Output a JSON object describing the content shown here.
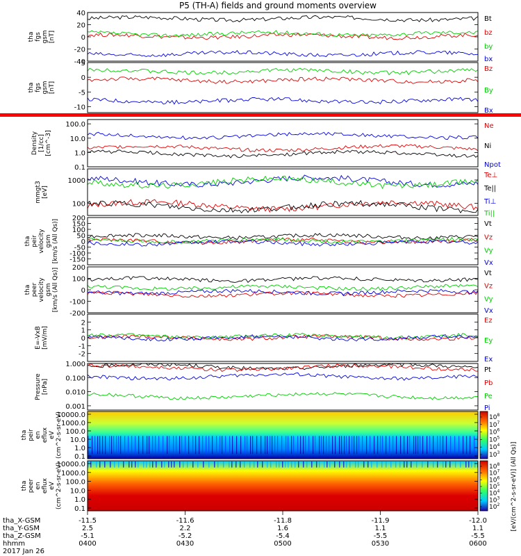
{
  "title": "P5 (TH-A) fields and ground moments overview",
  "xaxis": {
    "rows": [
      {
        "label": "tha_X-GSM",
        "values": [
          "-11.5",
          "-11.6",
          "-11.8",
          "-11.9",
          "-12.0"
        ]
      },
      {
        "label": "tha_Y-GSM",
        "values": [
          "2.5",
          "2.2",
          "1.6",
          "1.1",
          "1.1"
        ]
      },
      {
        "label": "tha_Z-GSM",
        "values": [
          "-5.1",
          "-5.2",
          "-5.4",
          "-5.5",
          "-5.5"
        ]
      },
      {
        "label": "hhmm",
        "values": [
          "0400",
          "0430",
          "0500",
          "0530",
          "0600"
        ]
      }
    ],
    "date": "2017 Jan 26"
  },
  "colors": {
    "black": "#000000",
    "red": "#e00000",
    "green": "#00cc00",
    "blue": "#0000e0"
  },
  "colorbar_label": "[eV/(cm^2-s-sr-eV)] (All Qs)]",
  "chart_data": [
    {
      "type": "line",
      "ylabel": [
        "tha",
        "fgs",
        "gsm",
        "[nT]"
      ],
      "ylim": [
        -40,
        40
      ],
      "yticks": [
        {
          "v": 40,
          "t": "40"
        },
        {
          "v": 20,
          "t": "20"
        },
        {
          "v": 0,
          "t": "0"
        },
        {
          "v": -20,
          "t": "-20"
        },
        {
          "v": -40,
          "t": "-40"
        }
      ],
      "series": [
        {
          "name": "Bt",
          "color": "black",
          "base": 30
        },
        {
          "name": "bz",
          "color": "red",
          "base": 1
        },
        {
          "name": "by",
          "color": "green",
          "base": 5
        },
        {
          "name": "bx",
          "color": "blue",
          "base": -28
        }
      ]
    },
    {
      "type": "line",
      "ylabel": [
        "tha",
        "fgs",
        "gsm",
        "[nT]"
      ],
      "ylim": [
        -12,
        5
      ],
      "yticks": [
        {
          "v": 5,
          "t": "5"
        },
        {
          "v": 0,
          "t": "0"
        },
        {
          "v": -5,
          "t": "-5"
        },
        {
          "v": -10,
          "t": "-10"
        }
      ],
      "series": [
        {
          "name": "Bz",
          "color": "red",
          "base": -1
        },
        {
          "name": "By",
          "color": "green",
          "base": 2
        },
        {
          "name": "Bx",
          "color": "blue",
          "base": -8
        }
      ]
    },
    {
      "type": "line",
      "scale": "log",
      "ylabel": [
        "Density",
        "[1/cc]",
        "[cm^-3]"
      ],
      "ylim": [
        0.1,
        200
      ],
      "yticks": [
        {
          "v": 100,
          "t": "100.0"
        },
        {
          "v": 10,
          "t": "10.0"
        },
        {
          "v": 1,
          "t": "1.0"
        },
        {
          "v": 0.1,
          "t": "0.1"
        }
      ],
      "series": [
        {
          "name": "Ne",
          "color": "red",
          "base": 2
        },
        {
          "name": "Ni",
          "color": "black",
          "base": 0.8
        },
        {
          "name": "Npot",
          "color": "blue",
          "base": 15
        }
      ]
    },
    {
      "type": "line",
      "scale": "log",
      "ylabel": [
        "mmgt3",
        "[eV]"
      ],
      "ylim": [
        30,
        3000
      ],
      "yticks": [
        {
          "v": 1000,
          "t": "1000"
        },
        {
          "v": 100,
          "t": "100"
        }
      ],
      "series": [
        {
          "name": "Te⊥",
          "color": "red",
          "base": 80
        },
        {
          "name": "Te||",
          "color": "black",
          "base": 70
        },
        {
          "name": "Ti⊥",
          "color": "blue",
          "base": 900
        },
        {
          "name": "Ti||",
          "color": "green",
          "base": 800
        }
      ]
    },
    {
      "type": "line",
      "ylabel": [
        "tha",
        "peir",
        "velocity",
        "gsm",
        "[km/s (All Qs)]"
      ],
      "ylim": [
        -200,
        200
      ],
      "yticks": [
        {
          "v": 200,
          "t": "200"
        },
        {
          "v": 150,
          "t": "150"
        },
        {
          "v": 100,
          "t": "100"
        },
        {
          "v": 50,
          "t": "50"
        },
        {
          "v": 0,
          "t": "0"
        },
        {
          "v": -50,
          "t": "-50"
        },
        {
          "v": -100,
          "t": "-100"
        },
        {
          "v": -150,
          "t": "-150"
        }
      ],
      "series": [
        {
          "name": "Vt",
          "color": "black",
          "base": 40
        },
        {
          "name": "Vz",
          "color": "red",
          "base": 0
        },
        {
          "name": "Vy",
          "color": "green",
          "base": 5
        },
        {
          "name": "Vx",
          "color": "blue",
          "base": -15
        }
      ]
    },
    {
      "type": "line",
      "ylabel": [
        "tha",
        "peer",
        "velocity",
        "gsm",
        "[km/s (All Qs)]"
      ],
      "ylim": [
        -200,
        200
      ],
      "yticks": [
        {
          "v": 200,
          "t": "200"
        },
        {
          "v": 100,
          "t": "100"
        },
        {
          "v": 0,
          "t": "0"
        },
        {
          "v": -100,
          "t": "-100"
        },
        {
          "v": -200,
          "t": "-200"
        }
      ],
      "series": [
        {
          "name": "Vt",
          "color": "black",
          "base": 90
        },
        {
          "name": "Vz",
          "color": "red",
          "base": -40
        },
        {
          "name": "Vy",
          "color": "green",
          "base": 20
        },
        {
          "name": "Vx",
          "color": "blue",
          "base": -20
        }
      ]
    },
    {
      "type": "line",
      "ylabel": [
        "E=-VxB",
        "[mV/m]"
      ],
      "ylim": [
        -3,
        3
      ],
      "yticks": [
        {
          "v": 2,
          "t": "2"
        },
        {
          "v": 1,
          "t": "1"
        },
        {
          "v": 0,
          "t": "0"
        },
        {
          "v": -1,
          "t": "-1"
        },
        {
          "v": -2,
          "t": "-2"
        }
      ],
      "series": [
        {
          "name": "Ez",
          "color": "red",
          "base": 0
        },
        {
          "name": "Ey",
          "color": "green",
          "base": 0.2
        },
        {
          "name": "Ex",
          "color": "blue",
          "base": 0
        }
      ]
    },
    {
      "type": "line",
      "scale": "log",
      "ylabel": [
        "Pressure",
        "[nPa]"
      ],
      "ylim": [
        0.0005,
        1
      ],
      "yticks": [
        {
          "v": 1,
          "t": "1.000"
        },
        {
          "v": 0.1,
          "t": "0.100"
        },
        {
          "v": 0.01,
          "t": "0.010"
        },
        {
          "v": 0.001,
          "t": "0.001"
        }
      ],
      "series": [
        {
          "name": "Pt",
          "color": "black",
          "base": 0.6
        },
        {
          "name": "Pb",
          "color": "red",
          "base": 0.5
        },
        {
          "name": "Pe",
          "color": "green",
          "base": 0.005
        },
        {
          "name": "Pi",
          "color": "blue",
          "base": 0.12
        }
      ]
    },
    {
      "type": "heatmap",
      "ylabel": [
        "tha",
        "peir",
        "en",
        "eflux",
        "eV",
        "(cm^2-s-sr-eV)"
      ],
      "yticks": [
        {
          "v": 0,
          "t": "10000.0"
        },
        {
          "v": 1,
          "t": "1000.0"
        },
        {
          "v": 2,
          "t": "100.0"
        },
        {
          "v": 3,
          "t": "10.0"
        },
        {
          "v": 4,
          "t": "1.0"
        },
        {
          "v": 5,
          "t": "0.1"
        }
      ],
      "colorbar": {
        "ticks": [
          "10^8",
          "10^7",
          "10^6",
          "10^5",
          "10^4",
          "10^3"
        ]
      }
    },
    {
      "type": "heatmap",
      "ylabel": [
        "tha",
        "peer",
        "en",
        "eflux",
        "eV",
        "(cm^2-s-sr-eV)"
      ],
      "yticks": [
        {
          "v": 0,
          "t": "10000.0"
        },
        {
          "v": 1,
          "t": "1000.0"
        },
        {
          "v": 2,
          "t": "100.0"
        },
        {
          "v": 3,
          "t": "10.0"
        },
        {
          "v": 4,
          "t": "1.0"
        },
        {
          "v": 5,
          "t": "0.1"
        }
      ],
      "colorbar": {
        "ticks": [
          "10^8",
          "10^7",
          "10^6",
          "10^5",
          "10^4",
          "10^3",
          "10^2"
        ]
      }
    }
  ]
}
